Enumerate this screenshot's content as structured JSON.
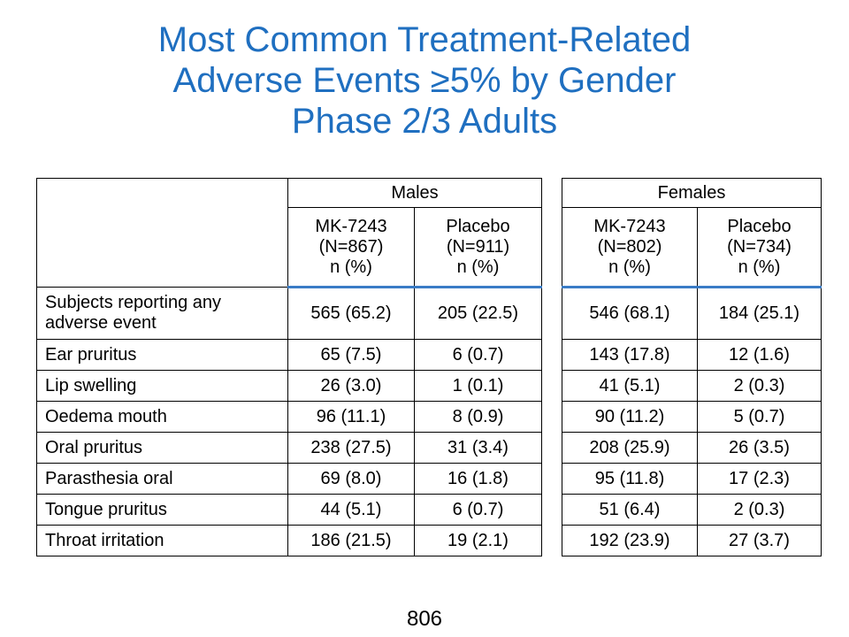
{
  "title": {
    "line1": "Most Common Treatment-Related",
    "line2": "Adverse Events ≥5% by Gender",
    "line3": "Phase 2/3 Adults"
  },
  "table": {
    "groups": [
      "Males",
      "Females"
    ],
    "columns": [
      {
        "l1": "MK-7243",
        "l2": "(N=867)",
        "l3": "n (%)"
      },
      {
        "l1": "Placebo",
        "l2": "(N=911)",
        "l3": "n (%)"
      },
      {
        "l1": "MK-7243",
        "l2": "(N=802)",
        "l3": "n (%)"
      },
      {
        "l1": "Placebo",
        "l2": "(N=734)",
        "l3": "n (%)"
      }
    ],
    "rows": [
      {
        "label_l1": "Subjects reporting any",
        "label_l2": "adverse event",
        "values": [
          "565 (65.2)",
          "205 (22.5)",
          "546 (68.1)",
          "184 (25.1)"
        ]
      },
      {
        "label": "Ear pruritus",
        "values": [
          "65 (7.5)",
          "6 (0.7)",
          "143 (17.8)",
          "12 (1.6)"
        ]
      },
      {
        "label": "Lip swelling",
        "values": [
          "26 (3.0)",
          "1 (0.1)",
          "41 (5.1)",
          "2 (0.3)"
        ]
      },
      {
        "label": "Oedema mouth",
        "values": [
          "96 (11.1)",
          "8 (0.9)",
          "90 (11.2)",
          "5 (0.7)"
        ]
      },
      {
        "label": "Oral pruritus",
        "values": [
          "238 (27.5)",
          "31 (3.4)",
          "208 (25.9)",
          "26 (3.5)"
        ]
      },
      {
        "label": "Parasthesia oral",
        "values": [
          "69 (8.0)",
          "16 (1.8)",
          "95 (11.8)",
          "17 (2.3)"
        ]
      },
      {
        "label": "Tongue pruritus",
        "values": [
          "44 (5.1)",
          "6 (0.7)",
          "51 (6.4)",
          "2 (0.3)"
        ]
      },
      {
        "label": "Throat irritation",
        "values": [
          "186 (21.5)",
          "19 (2.1)",
          "192 (23.9)",
          "27 (3.7)"
        ]
      }
    ]
  },
  "page_number": "806"
}
